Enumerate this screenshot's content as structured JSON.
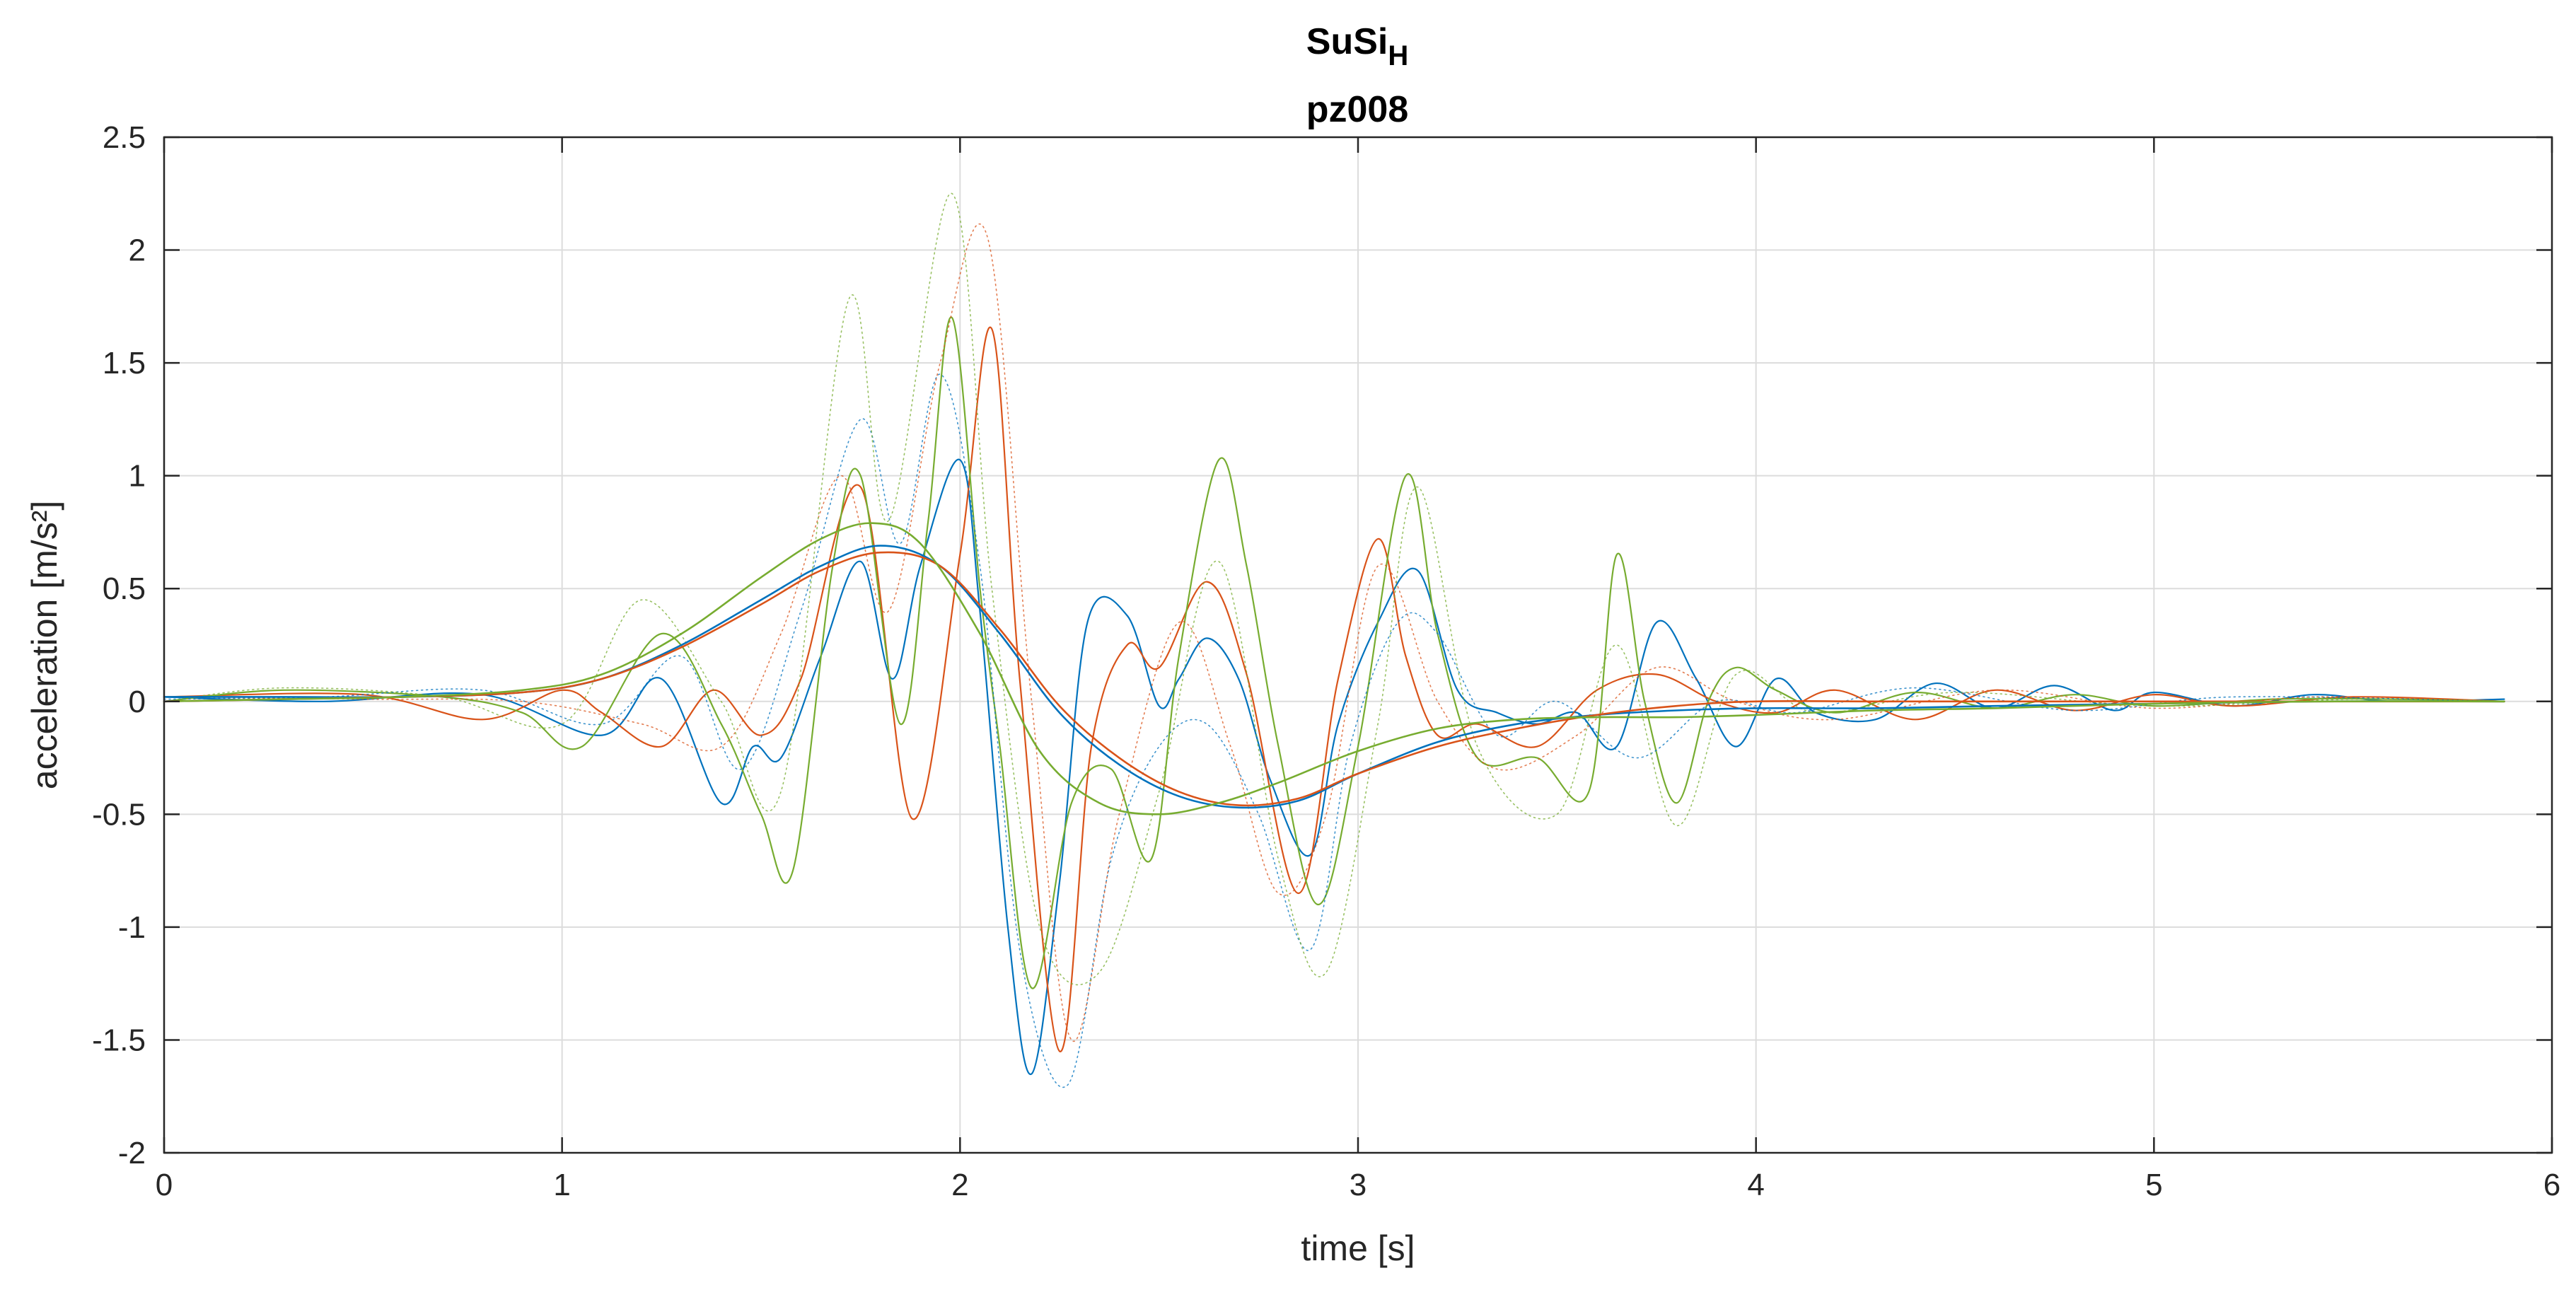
{
  "chart_data": {
    "type": "line",
    "title": "SuSi",
    "title_subscript": "H",
    "subtitle": "pz008",
    "xlabel": "time [s]",
    "ylabel": "acceleration [m/s²]",
    "xlim": [
      0,
      6
    ],
    "ylim": [
      -2,
      2.5
    ],
    "xticks": [
      0,
      1,
      2,
      3,
      4,
      5,
      6
    ],
    "xtick_labels": [
      "0",
      "1",
      "2",
      "3",
      "4",
      "5",
      "6"
    ],
    "yticks": [
      2.5,
      2,
      1.5,
      1,
      0.5,
      0,
      -0.5,
      -1,
      -1.5,
      -2
    ],
    "ytick_labels": [
      "2.5",
      "2",
      "1.5",
      "1",
      "0.5",
      "0",
      "-0.5",
      "-1",
      "-1.5",
      "-2"
    ],
    "grid": true,
    "legend": "none",
    "series": [
      {
        "style": "solid",
        "color": "#0072BD",
        "width": 2.2,
        "x": [
          0,
          0.4,
          0.8,
          1.1,
          1.25,
          1.4,
          1.48,
          1.55,
          1.65,
          1.75,
          1.83,
          1.9,
          2.0,
          2.05,
          2.12,
          2.18,
          2.25,
          2.32,
          2.42,
          2.5,
          2.55,
          2.62,
          2.7,
          2.78,
          2.88,
          2.95,
          3.05,
          3.15,
          3.25,
          3.35,
          3.45,
          3.55,
          3.65,
          3.75,
          3.85,
          3.95,
          4.05,
          4.15,
          4.3,
          4.45,
          4.6,
          4.75,
          4.9,
          5.0,
          5.2,
          5.4,
          5.6,
          5.88
        ],
        "y": [
          0.02,
          0.0,
          0.03,
          -0.15,
          0.1,
          -0.45,
          -0.2,
          -0.25,
          0.2,
          0.62,
          0.1,
          0.6,
          1.07,
          0.4,
          -1.0,
          -1.65,
          -0.8,
          0.35,
          0.38,
          -0.02,
          0.1,
          0.28,
          0.1,
          -0.35,
          -0.68,
          -0.1,
          0.35,
          0.58,
          0.05,
          -0.05,
          -0.1,
          -0.05,
          -0.2,
          0.35,
          0.1,
          -0.2,
          0.1,
          -0.05,
          -0.08,
          0.08,
          -0.03,
          0.07,
          -0.04,
          0.04,
          -0.02,
          0.03,
          0.0,
          0.01
        ]
      },
      {
        "style": "solid",
        "color": "#D95319",
        "width": 2.2,
        "x": [
          0,
          0.5,
          0.8,
          1.0,
          1.1,
          1.25,
          1.38,
          1.5,
          1.6,
          1.75,
          1.88,
          2.0,
          2.08,
          2.15,
          2.25,
          2.33,
          2.42,
          2.5,
          2.62,
          2.72,
          2.85,
          2.95,
          3.05,
          3.12,
          3.2,
          3.3,
          3.45,
          3.6,
          3.75,
          3.9,
          4.05,
          4.2,
          4.4,
          4.6,
          4.8,
          5.0,
          5.2,
          5.5,
          5.88
        ],
        "y": [
          0.02,
          0.03,
          -0.08,
          0.05,
          -0.05,
          -0.2,
          0.05,
          -0.15,
          0.1,
          0.95,
          -0.52,
          0.65,
          1.65,
          0.1,
          -1.55,
          -0.2,
          0.25,
          0.15,
          0.53,
          0.12,
          -0.85,
          0.1,
          0.72,
          0.2,
          -0.15,
          -0.1,
          -0.2,
          0.05,
          0.12,
          0.0,
          -0.05,
          0.05,
          -0.08,
          0.05,
          -0.04,
          0.03,
          -0.02,
          0.02,
          0.0
        ]
      },
      {
        "style": "solid",
        "color": "#77AC30",
        "width": 2.2,
        "x": [
          0,
          0.3,
          0.7,
          0.9,
          1.05,
          1.25,
          1.4,
          1.5,
          1.58,
          1.68,
          1.75,
          1.85,
          1.92,
          1.98,
          2.05,
          2.1,
          2.18,
          2.28,
          2.38,
          2.48,
          2.55,
          2.65,
          2.72,
          2.8,
          2.9,
          3.0,
          3.12,
          3.2,
          3.3,
          3.45,
          3.58,
          3.65,
          3.72,
          3.8,
          3.88,
          3.95,
          4.05,
          4.2,
          4.4,
          4.6,
          4.8,
          5.0,
          5.3,
          5.6,
          5.88
        ],
        "y": [
          0.0,
          0.05,
          0.02,
          -0.05,
          -0.2,
          0.3,
          -0.1,
          -0.5,
          -0.75,
          0.6,
          1.0,
          -0.1,
          0.8,
          1.7,
          0.5,
          -0.2,
          -1.27,
          -0.45,
          -0.3,
          -0.7,
          0.2,
          1.07,
          0.6,
          -0.2,
          -0.9,
          -0.2,
          1.0,
          0.3,
          -0.25,
          -0.25,
          -0.4,
          0.65,
          0.0,
          -0.45,
          0.0,
          0.15,
          0.05,
          -0.05,
          0.04,
          -0.03,
          0.03,
          -0.02,
          0.01,
          0.01,
          0.0
        ]
      },
      {
        "style": "dotted",
        "color": "#0072BD",
        "width": 1.6,
        "x": [
          0,
          0.4,
          0.8,
          1.1,
          1.3,
          1.45,
          1.6,
          1.75,
          1.85,
          1.95,
          2.05,
          2.15,
          2.27,
          2.38,
          2.5,
          2.62,
          2.75,
          2.88,
          2.98,
          3.1,
          3.2,
          3.35,
          3.5,
          3.7,
          3.9,
          4.1,
          4.4,
          4.8,
          5.2,
          5.88
        ],
        "y": [
          0.01,
          0.02,
          0.05,
          -0.1,
          0.2,
          -0.3,
          0.4,
          1.25,
          0.7,
          1.45,
          0.6,
          -1.1,
          -1.7,
          -0.7,
          -0.2,
          -0.1,
          -0.5,
          -1.1,
          -0.2,
          0.35,
          0.3,
          -0.15,
          0.0,
          -0.25,
          0.0,
          -0.05,
          0.06,
          -0.04,
          0.02,
          0.0
        ]
      },
      {
        "style": "dotted",
        "color": "#D95319",
        "width": 1.6,
        "x": [
          0,
          0.5,
          0.9,
          1.2,
          1.4,
          1.55,
          1.7,
          1.82,
          1.95,
          2.07,
          2.18,
          2.28,
          2.4,
          2.55,
          2.68,
          2.8,
          2.92,
          3.05,
          3.2,
          3.35,
          3.55,
          3.75,
          3.95,
          4.2,
          4.6,
          5.0,
          5.4,
          5.88
        ],
        "y": [
          0.02,
          0.01,
          0.0,
          -0.1,
          -0.2,
          0.3,
          1.0,
          0.4,
          1.5,
          2.05,
          0.0,
          -1.5,
          -0.5,
          0.35,
          -0.2,
          -0.85,
          -0.5,
          0.6,
          0.0,
          -0.3,
          -0.15,
          0.15,
          0.0,
          -0.08,
          0.05,
          -0.03,
          0.02,
          0.0
        ]
      },
      {
        "style": "dotted",
        "color": "#77AC30",
        "width": 1.6,
        "x": [
          0,
          0.3,
          0.7,
          1.0,
          1.2,
          1.4,
          1.55,
          1.72,
          1.82,
          1.98,
          2.08,
          2.2,
          2.35,
          2.5,
          2.65,
          2.8,
          2.92,
          3.05,
          3.15,
          3.3,
          3.5,
          3.65,
          3.8,
          3.95,
          4.15,
          4.5,
          5.0,
          5.5,
          5.88
        ],
        "y": [
          0.0,
          0.06,
          0.02,
          -0.1,
          0.45,
          0.0,
          -0.4,
          1.78,
          0.8,
          2.25,
          0.5,
          -1.0,
          -1.2,
          -0.4,
          0.62,
          -0.7,
          -1.2,
          -0.1,
          0.95,
          -0.2,
          -0.5,
          0.25,
          -0.55,
          0.12,
          -0.05,
          0.04,
          -0.02,
          0.01,
          0.0
        ]
      },
      {
        "style": "solid",
        "color": "#0072BD",
        "width": 2.6,
        "x": [
          0,
          0.3,
          0.6,
          0.9,
          1.1,
          1.3,
          1.5,
          1.65,
          1.8,
          1.95,
          2.1,
          2.25,
          2.4,
          2.55,
          2.7,
          2.85,
          3.0,
          3.2,
          3.4,
          3.6,
          3.8,
          4.0,
          4.3,
          4.6,
          5.0,
          5.4,
          5.88
        ],
        "y": [
          0.02,
          0.02,
          0.02,
          0.04,
          0.1,
          0.25,
          0.45,
          0.6,
          0.69,
          0.6,
          0.3,
          -0.05,
          -0.28,
          -0.42,
          -0.47,
          -0.44,
          -0.32,
          -0.18,
          -0.1,
          -0.06,
          -0.04,
          -0.03,
          -0.03,
          -0.02,
          -0.01,
          0.0,
          0.0
        ]
      },
      {
        "style": "solid",
        "color": "#D95319",
        "width": 2.6,
        "x": [
          0,
          0.3,
          0.6,
          0.9,
          1.1,
          1.3,
          1.5,
          1.65,
          1.8,
          1.95,
          2.1,
          2.25,
          2.4,
          2.55,
          2.7,
          2.85,
          3.0,
          3.2,
          3.4,
          3.6,
          3.8,
          4.0,
          4.3,
          4.6,
          5.0,
          5.4,
          5.88
        ],
        "y": [
          0.0,
          0.01,
          0.02,
          0.04,
          0.1,
          0.24,
          0.43,
          0.58,
          0.66,
          0.6,
          0.32,
          -0.02,
          -0.25,
          -0.4,
          -0.46,
          -0.43,
          -0.32,
          -0.2,
          -0.12,
          -0.06,
          -0.02,
          0.0,
          0.0,
          0.0,
          0.0,
          0.0,
          0.0
        ]
      },
      {
        "style": "solid",
        "color": "#77AC30",
        "width": 2.6,
        "x": [
          0,
          0.3,
          0.6,
          0.9,
          1.1,
          1.3,
          1.5,
          1.65,
          1.78,
          1.9,
          2.05,
          2.2,
          2.35,
          2.5,
          2.65,
          2.8,
          3.0,
          3.2,
          3.4,
          3.6,
          3.8,
          4.0,
          4.3,
          4.6,
          5.0,
          5.4,
          5.88
        ],
        "y": [
          0.0,
          0.01,
          0.02,
          0.05,
          0.12,
          0.3,
          0.55,
          0.72,
          0.79,
          0.7,
          0.3,
          -0.22,
          -0.45,
          -0.5,
          -0.45,
          -0.36,
          -0.22,
          -0.12,
          -0.08,
          -0.07,
          -0.07,
          -0.06,
          -0.04,
          -0.03,
          -0.01,
          0.0,
          0.0
        ]
      }
    ]
  }
}
